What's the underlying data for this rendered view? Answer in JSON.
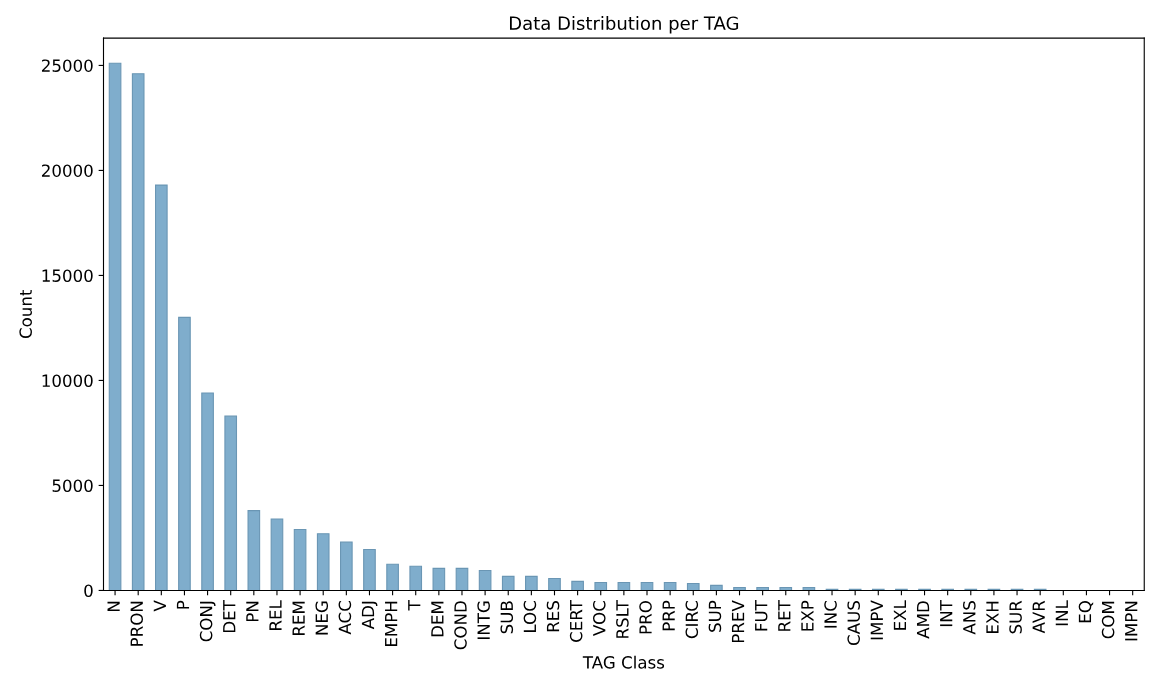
{
  "chart_data": {
    "type": "bar",
    "title": "Data Distribution per TAG",
    "xlabel": "TAG Class",
    "ylabel": "Count",
    "categories": [
      "N",
      "PRON",
      "V",
      "P",
      "CONJ",
      "DET",
      "PN",
      "REL",
      "REM",
      "NEG",
      "ACC",
      "ADJ",
      "EMPH",
      "T",
      "DEM",
      "COND",
      "INTG",
      "SUB",
      "LOC",
      "RES",
      "CERT",
      "VOC",
      "RSLT",
      "PRO",
      "PRP",
      "CIRC",
      "SUP",
      "PREV",
      "FUT",
      "RET",
      "EXP",
      "INC",
      "CAUS",
      "IMPV",
      "EXL",
      "AMD",
      "INT",
      "ANS",
      "EXH",
      "SUR",
      "AVR",
      "INL",
      "EQ",
      "COM",
      "IMPN"
    ],
    "values": [
      25100,
      24600,
      19300,
      13000,
      9400,
      8300,
      3800,
      3400,
      2900,
      2700,
      2300,
      1950,
      1250,
      1150,
      1050,
      1050,
      950,
      670,
      670,
      570,
      430,
      380,
      380,
      380,
      380,
      330,
      240,
      140,
      140,
      140,
      140,
      50,
      50,
      50,
      50,
      50,
      50,
      50,
      50,
      50,
      50,
      null,
      null,
      null,
      null
    ],
    "color": "#7fadcc",
    "ylim": [
      0,
      26300
    ],
    "yticks": [
      0,
      5000,
      10000,
      15000,
      20000,
      25000
    ],
    "grid": false,
    "legend": false
  }
}
